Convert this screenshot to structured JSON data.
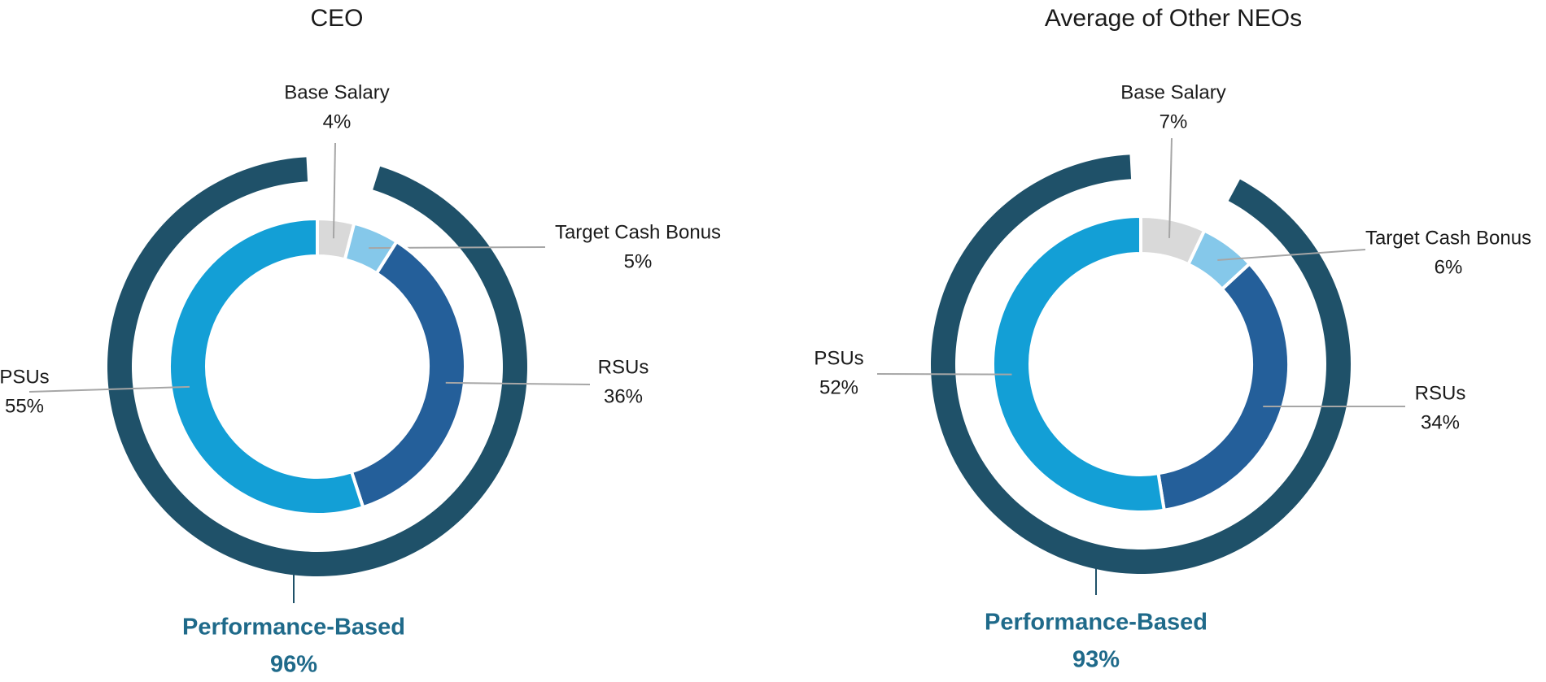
{
  "chart_data": [
    {
      "type": "donut",
      "title": "CEO",
      "categories": [
        "Base Salary",
        "Target Cash Bonus",
        "RSUs",
        "PSUs"
      ],
      "values": [
        4,
        5,
        36,
        55
      ],
      "value_labels": [
        "4%",
        "5%",
        "36%",
        "55%"
      ],
      "colors": [
        "#d9d9d9",
        "#85c8ea",
        "#245f9a",
        "#139fd6"
      ],
      "outer_ring": {
        "label": "Performance-Based",
        "value": 96,
        "value_label": "96%",
        "color": "#1f5169"
      }
    },
    {
      "type": "donut",
      "title": "Average of Other NEOs",
      "categories": [
        "Base Salary",
        "Target Cash Bonus",
        "RSUs",
        "PSUs"
      ],
      "values": [
        7,
        6,
        34,
        52
      ],
      "value_labels": [
        "7%",
        "6%",
        "34%",
        "52%"
      ],
      "colors": [
        "#d9d9d9",
        "#85c8ea",
        "#245f9a",
        "#139fd6"
      ],
      "outer_ring": {
        "label": "Performance-Based",
        "value": 93,
        "value_label": "93%",
        "color": "#1f5169"
      }
    }
  ]
}
